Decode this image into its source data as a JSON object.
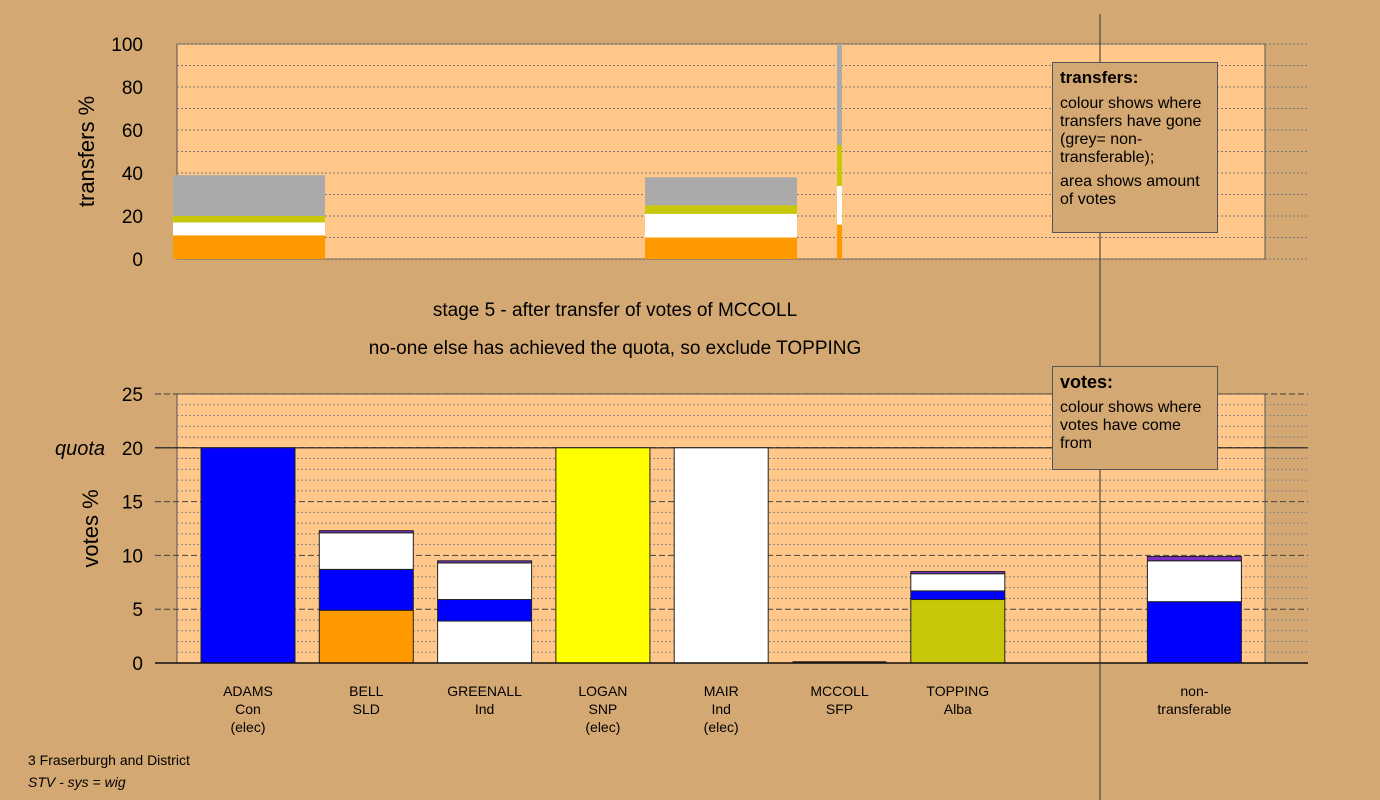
{
  "stage": {
    "line1": "stage 5 - after transfer of votes of MCCOLL",
    "line2": "no-one else has achieved the quota, so exclude TOPPING"
  },
  "footer": {
    "ward": "3 Fraserburgh and District",
    "system": "STV - sys = wig"
  },
  "legends": {
    "transfers": {
      "title": "transfers:",
      "p1": "colour shows where transfers have gone (grey= non-transferable);",
      "p2": "area shows amount of votes"
    },
    "votes": {
      "title": "votes:",
      "p1": "colour shows where votes have come from"
    }
  },
  "colors": {
    "Con": "#0000FF",
    "SLD": "#FF9900",
    "Ind": "#FFFFFF",
    "SNP": "#FFFF00",
    "SFP": "#7B2FBE",
    "Alba": "#C8C80A",
    "NT": "#AAAAAA",
    "plot_bg": "#FFC88A",
    "page_bg": "#D4A872"
  },
  "chart_data": [
    {
      "type": "bar",
      "name": "transfers",
      "ylabel": "transfers %",
      "ylim": [
        0,
        100
      ],
      "yticks": [
        0,
        20,
        40,
        60,
        80,
        100
      ],
      "transfers": [
        {
          "from": "ADAMS",
          "segments": [
            {
              "party": "SLD",
              "value": 11
            },
            {
              "party": "Ind",
              "value": 6
            },
            {
              "party": "Alba",
              "value": 3
            },
            {
              "party": "NT",
              "value": 19
            }
          ]
        },
        {
          "from": "LOGAN",
          "segments": [
            {
              "party": "SLD",
              "value": 10
            },
            {
              "party": "Ind",
              "value": 11
            },
            {
              "party": "Alba",
              "value": 4
            },
            {
              "party": "NT",
              "value": 13
            }
          ]
        },
        {
          "from": "MCCOLL",
          "segments": [
            {
              "party": "SLD",
              "value": 16
            },
            {
              "party": "Ind",
              "value": 18
            },
            {
              "party": "Alba",
              "value": 19
            },
            {
              "party": "NT",
              "value": 47
            }
          ]
        }
      ]
    },
    {
      "type": "bar",
      "name": "votes",
      "ylabel": "votes %",
      "ylim": [
        0,
        25
      ],
      "yticks": [
        0,
        5,
        10,
        15,
        20,
        25
      ],
      "quota": 20,
      "quota_label": "quota",
      "candidates": [
        {
          "name": "ADAMS",
          "party": "Con",
          "status": "(elec)",
          "segments": [
            {
              "party": "Con",
              "value": 20
            }
          ]
        },
        {
          "name": "BELL",
          "party": "SLD",
          "status": "",
          "segments": [
            {
              "party": "SLD",
              "value": 4.9
            },
            {
              "party": "Con",
              "value": 3.8
            },
            {
              "party": "Ind",
              "value": 3.4
            },
            {
              "party": "SFP",
              "value": 0.2
            }
          ]
        },
        {
          "name": "GREENALL",
          "party": "Ind",
          "status": "",
          "segments": [
            {
              "party": "Ind",
              "value": 3.9
            },
            {
              "party": "Con",
              "value": 2
            },
            {
              "party": "Ind",
              "value": 3.4
            },
            {
              "party": "SFP",
              "value": 0.2
            }
          ]
        },
        {
          "name": "LOGAN",
          "party": "SNP",
          "status": "(elec)",
          "segments": [
            {
              "party": "SNP",
              "value": 20
            }
          ]
        },
        {
          "name": "MAIR",
          "party": "Ind",
          "status": "(elec)",
          "segments": [
            {
              "party": "Ind",
              "value": 20
            }
          ]
        },
        {
          "name": "MCCOLL",
          "party": "SFP",
          "status": "",
          "segments": []
        },
        {
          "name": "TOPPING",
          "party": "Alba",
          "status": "",
          "segments": [
            {
              "party": "Alba",
              "value": 5.9
            },
            {
              "party": "Con",
              "value": 0.8
            },
            {
              "party": "Ind",
              "value": 1.6
            },
            {
              "party": "SFP",
              "value": 0.2
            }
          ]
        },
        {
          "name": "non-",
          "party": "transferable",
          "status": "",
          "segments": [
            {
              "party": "Con",
              "value": 5.7
            },
            {
              "party": "Ind",
              "value": 3.8
            },
            {
              "party": "SFP",
              "value": 0.4
            }
          ]
        }
      ]
    }
  ]
}
